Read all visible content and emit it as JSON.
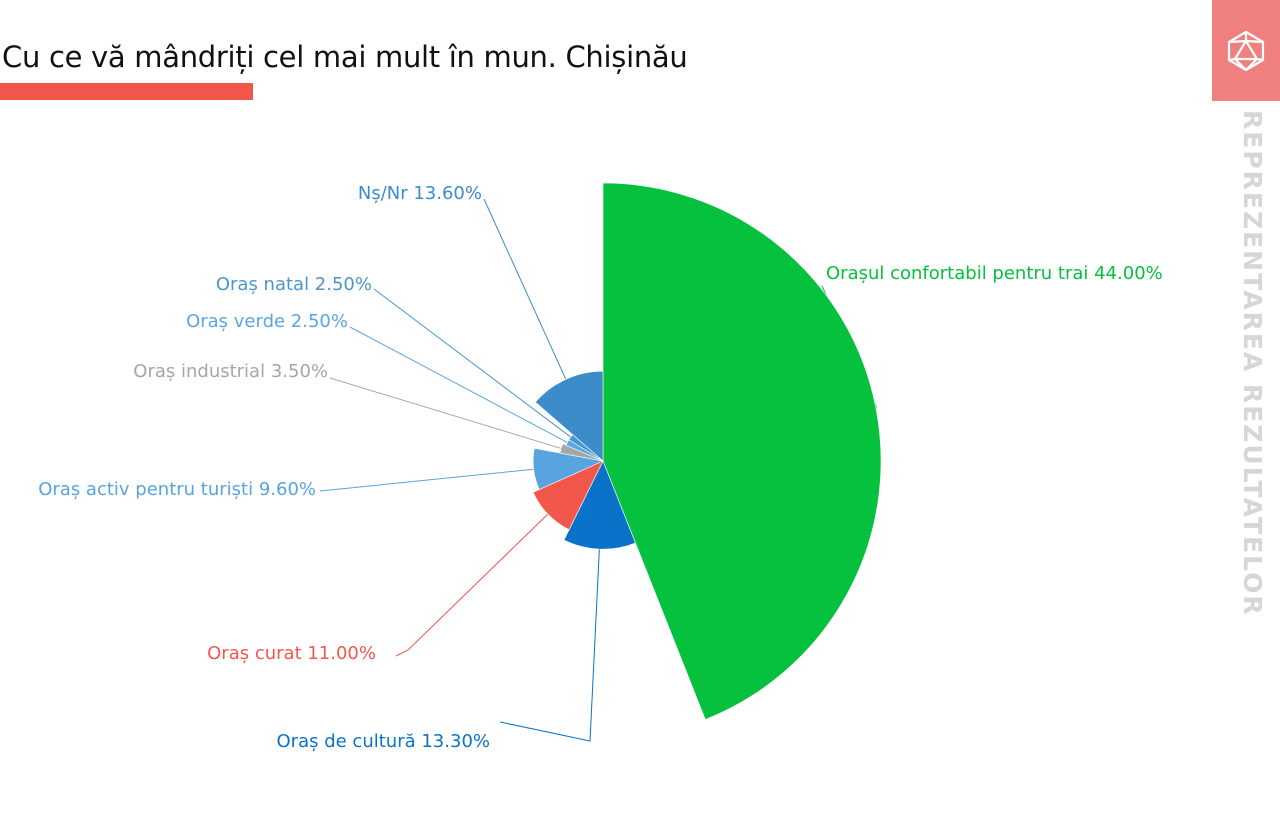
{
  "page": {
    "title": "Cu ce vă mândriți cel mai mult în mun. Chișinău",
    "side_text": "REPREZENTAREA REZULTATELOR",
    "logo_icon": "polyhedron-logo-icon"
  },
  "colors": {
    "accent": "#f0564a",
    "badge": "#f08080",
    "side_text": "#d6d6d6"
  },
  "chart_data": {
    "type": "pie",
    "variant": "variable-radius",
    "title": "",
    "series": [
      {
        "name": "",
        "slices": [
          {
            "label": "Orașul confortabil pentru trai",
            "value": 44.0,
            "text": "Orașul confortabil pentru trai 44.00%",
            "color": "#05c13d"
          },
          {
            "label": "Oraș de cultură",
            "value": 13.3,
            "text": "Oraș de cultură 13.30%",
            "color": "#0a73c9"
          },
          {
            "label": "Oraș curat",
            "value": 11.0,
            "text": "Oraș curat 11.00%",
            "color": "#f1574b"
          },
          {
            "label": "Oraș activ pentru turiști",
            "value": 9.6,
            "text": "Oraș activ pentru turiști 9.60%",
            "color": "#58a4de"
          },
          {
            "label": "Oraș industrial",
            "value": 3.5,
            "text": "Oraș industrial 3.50%",
            "color": "#a6a6a6"
          },
          {
            "label": "Oraș verde",
            "value": 2.5,
            "text": "Oraș verde 2.50%",
            "color": "#5aa6df"
          },
          {
            "label": "Oraș natal",
            "value": 2.5,
            "text": "Oraș natal 2.50%",
            "color": "#4a96cf"
          },
          {
            "label": "Nș/Nr",
            "value": 13.6,
            "text": "Nș/Nr 13.60%",
            "color": "#3b8cc9"
          }
        ]
      }
    ]
  }
}
